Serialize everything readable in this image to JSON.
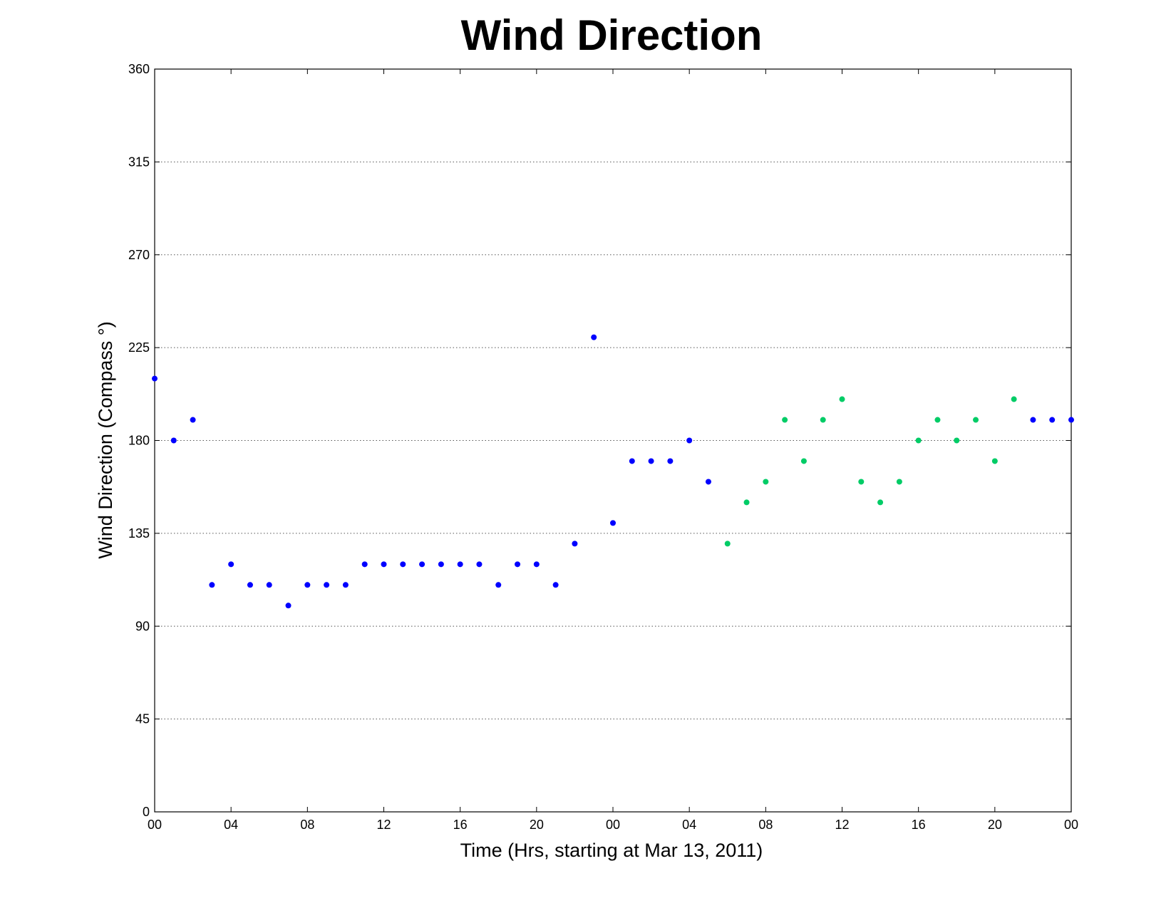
{
  "chart_data": {
    "type": "scatter",
    "title": "Wind Direction",
    "xlabel": "Time (Hrs, starting at Mar 13, 2011)",
    "ylabel": "Wind Direction (Compass  °)",
    "ylim": [
      0,
      360
    ],
    "xlim": [
      0,
      48
    ],
    "grid": "horizontal dotted",
    "legend": "none",
    "y_ticks": [
      0,
      45,
      90,
      135,
      180,
      225,
      270,
      315,
      360
    ],
    "x_ticks": [
      0,
      4,
      8,
      12,
      16,
      20,
      24,
      28,
      32,
      36,
      40,
      44,
      48
    ],
    "x_tick_labels": [
      "00",
      "04",
      "08",
      "12",
      "16",
      "20",
      "00",
      "04",
      "08",
      "12",
      "16",
      "20",
      "00"
    ],
    "series": [
      {
        "color": "#0000ff",
        "x": [
          0,
          1,
          2,
          3,
          4,
          5,
          6,
          7,
          8,
          9,
          10,
          11,
          12,
          13,
          14,
          15,
          16,
          17,
          18,
          19,
          20,
          21,
          22,
          23,
          24,
          25,
          26,
          27,
          28,
          29,
          46,
          47,
          48
        ],
        "y": [
          210,
          180,
          190,
          110,
          120,
          110,
          110,
          100,
          110,
          110,
          110,
          120,
          120,
          120,
          120,
          120,
          120,
          120,
          110,
          120,
          120,
          110,
          130,
          230,
          140,
          170,
          170,
          170,
          180,
          160,
          190,
          190,
          190
        ]
      },
      {
        "color": "#00cc66",
        "x": [
          30,
          31,
          32,
          33,
          34,
          35,
          36,
          37,
          38,
          39,
          40,
          41,
          42,
          43,
          44,
          45
        ],
        "y": [
          130,
          150,
          160,
          190,
          170,
          190,
          200,
          160,
          150,
          160,
          180,
          190,
          180,
          190,
          170,
          200
        ]
      }
    ]
  }
}
